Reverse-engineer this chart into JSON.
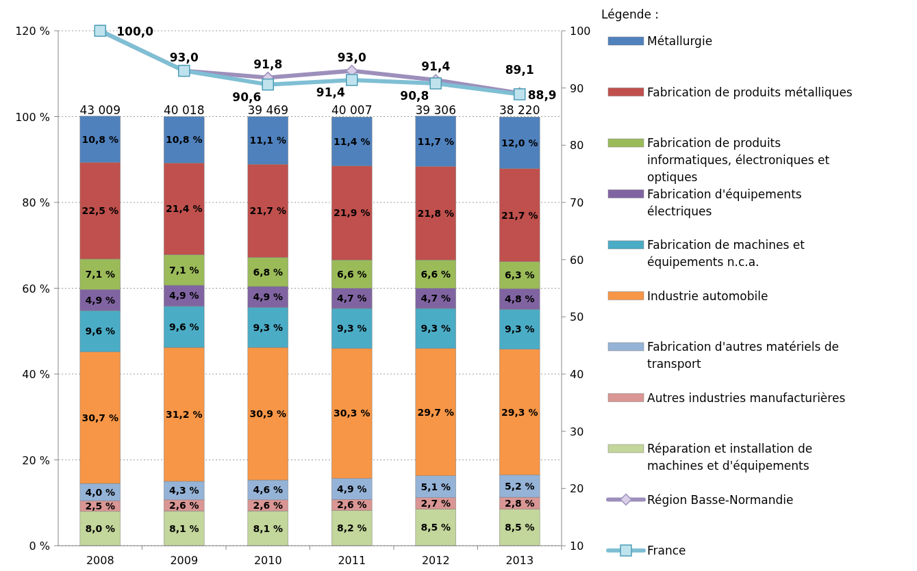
{
  "chart_data": {
    "type": "bar",
    "stacked": true,
    "categories": [
      "2008",
      "2009",
      "2010",
      "2011",
      "2012",
      "2013"
    ],
    "ylim": [
      0,
      120
    ],
    "yticks": [
      {
        "value": 0,
        "label": "0 %"
      },
      {
        "value": 20,
        "label": "20 %"
      },
      {
        "value": 40,
        "label": "40 %"
      },
      {
        "value": 60,
        "label": "60 %"
      },
      {
        "value": 80,
        "label": "80 %"
      },
      {
        "value": 100,
        "label": "100 %"
      },
      {
        "value": 120,
        "label": "120 %"
      }
    ],
    "y2lim": [
      10,
      100
    ],
    "y2ticks": [
      10,
      20,
      30,
      40,
      50,
      60,
      70,
      80,
      90,
      100
    ],
    "grid": "y",
    "legend": "right",
    "legend_title": "Légende :",
    "annotations": [
      {
        "text": "43 009",
        "x": "2008",
        "y": 100
      },
      {
        "text": "40 018",
        "x": "2009",
        "y": 100
      },
      {
        "text": "39 469",
        "x": "2010",
        "y": 100
      },
      {
        "text": "40 007",
        "x": "2011",
        "y": 100
      },
      {
        "text": "39 306",
        "x": "2012",
        "y": 100
      },
      {
        "text": "38 220",
        "x": "2013",
        "y": 100
      }
    ],
    "series": [
      {
        "name": "Réparation et installation de machines et d'équipements",
        "color": "#c3d69b",
        "values": [
          8.0,
          8.1,
          8.1,
          8.2,
          8.5,
          8.5
        ],
        "value_labels": [
          "8,0 %",
          "8,1 %",
          "8,1 %",
          "8,2 %",
          "8,5 %",
          "8,5 %"
        ]
      },
      {
        "name": "Autres industries manufacturières",
        "color": "#d99694",
        "values": [
          2.5,
          2.6,
          2.6,
          2.6,
          2.7,
          2.8
        ],
        "value_labels": [
          "2,5 %",
          "2,6 %",
          "2,6 %",
          "2,6 %",
          "2,7 %",
          "2,8 %"
        ]
      },
      {
        "name": "Fabrication d'autres matériels de transport",
        "color": "#95b3d7",
        "values": [
          4.0,
          4.3,
          4.6,
          4.9,
          5.1,
          5.2
        ],
        "value_labels": [
          "4,0 %",
          "4,3 %",
          "4,6 %",
          "4,9 %",
          "5,1 %",
          "5,2 %"
        ]
      },
      {
        "name": "Industrie automobile",
        "color": "#f79646",
        "values": [
          30.7,
          31.2,
          30.9,
          30.3,
          29.7,
          29.3
        ],
        "value_labels": [
          "30,7 %",
          "31,2 %",
          "30,9 %",
          "30,3 %",
          "29,7 %",
          "29,3 %"
        ]
      },
      {
        "name": "Fabrication de machines et équipements n.c.a.",
        "color": "#4bacc6",
        "values": [
          9.6,
          9.6,
          9.3,
          9.3,
          9.3,
          9.3
        ],
        "value_labels": [
          "9,6 %",
          "9,6 %",
          "9,3 %",
          "9,3 %",
          "9,3 %",
          "9,3 %"
        ]
      },
      {
        "name": "Fabrication d'équipements électriques",
        "color": "#8064a2",
        "values": [
          4.9,
          4.9,
          4.9,
          4.7,
          4.7,
          4.8
        ],
        "value_labels": [
          "4,9 %",
          "4,9 %",
          "4,9 %",
          "4,7 %",
          "4,7 %",
          "4,8 %"
        ]
      },
      {
        "name": "Fabrication de produits informatiques, électroniques et optiques",
        "color": "#9bbb59",
        "values": [
          7.1,
          7.1,
          6.8,
          6.6,
          6.6,
          6.3
        ],
        "value_labels": [
          "7,1 %",
          "7,1 %",
          "6,8 %",
          "6,6 %",
          "6,6 %",
          "6,3 %"
        ]
      },
      {
        "name": "Fabrication de produits métalliques",
        "color": "#c0504d",
        "values": [
          22.5,
          21.4,
          21.7,
          21.9,
          21.8,
          21.7
        ],
        "value_labels": [
          "22,5 %",
          "21,4 %",
          "21,7 %",
          "21,9 %",
          "21,8 %",
          "21,7 %"
        ]
      },
      {
        "name": "Métallurgie",
        "color": "#4f81bd",
        "values": [
          10.8,
          10.8,
          11.1,
          11.4,
          11.7,
          12.0
        ],
        "value_labels": [
          "10,8 %",
          "10,8 %",
          "11,1 %",
          "11,4 %",
          "11,7 %",
          "12,0 %"
        ]
      },
      {
        "name": "Région Basse-Normandie",
        "type": "line",
        "axis": "y2",
        "marker": "diamond",
        "color": "#9d8fbb",
        "values": [
          100.0,
          93.0,
          91.8,
          93.0,
          91.4,
          89.1
        ],
        "value_labels": [
          "100,0",
          "93,0",
          "91,8",
          "93,0",
          "91,4",
          "89,1"
        ]
      },
      {
        "name": "France",
        "type": "line",
        "axis": "y2",
        "marker": "square",
        "color": "#7fbfd4",
        "values": [
          100.0,
          93.0,
          90.6,
          91.4,
          90.8,
          88.9
        ],
        "value_labels": [
          null,
          null,
          "90,6",
          "91,4",
          "90,8",
          "88,9"
        ]
      }
    ]
  }
}
